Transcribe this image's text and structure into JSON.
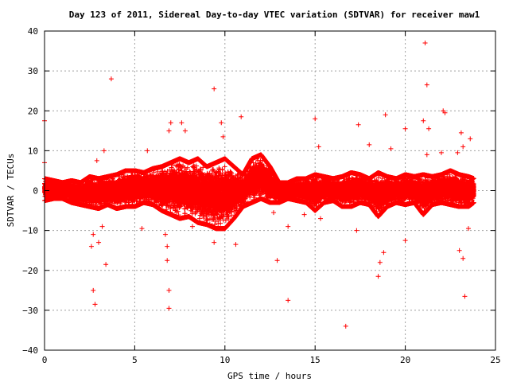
{
  "chart_data": {
    "type": "scatter",
    "title": "Day 123 of 2011, Sidereal Day-to-day VTEC variation (SDTVAR) for receiver maw1",
    "xlabel": "GPS time / hours",
    "ylabel": "SDTVAR / TECUs",
    "xlim": [
      0,
      25
    ],
    "ylim": [
      -40,
      40
    ],
    "xticks": [
      "0",
      "5",
      "10",
      "15",
      "20",
      "25"
    ],
    "yticks": [
      "40",
      "30",
      "20",
      "10",
      "0",
      "−10",
      "−20",
      "−30",
      "−40"
    ],
    "grid": true,
    "marker": "plus",
    "color": "#ff0000",
    "band": [
      [
        0.0,
        -2.5,
        3.0
      ],
      [
        0.5,
        -2.0,
        2.5
      ],
      [
        1.0,
        -2.0,
        2.0
      ],
      [
        1.5,
        -3.0,
        2.5
      ],
      [
        2.0,
        -3.5,
        2.0
      ],
      [
        2.5,
        -4.0,
        3.5
      ],
      [
        3.0,
        -4.5,
        3.0
      ],
      [
        3.5,
        -3.5,
        3.5
      ],
      [
        4.0,
        -4.5,
        4.0
      ],
      [
        4.5,
        -4.0,
        5.0
      ],
      [
        5.0,
        -4.0,
        5.0
      ],
      [
        5.5,
        -3.0,
        4.5
      ],
      [
        6.0,
        -3.5,
        5.5
      ],
      [
        6.5,
        -5.0,
        6.0
      ],
      [
        7.0,
        -6.0,
        7.0
      ],
      [
        7.5,
        -7.0,
        8.0
      ],
      [
        8.0,
        -6.5,
        7.0
      ],
      [
        8.5,
        -8.0,
        8.0
      ],
      [
        9.0,
        -8.5,
        6.0
      ],
      [
        9.5,
        -9.5,
        7.0
      ],
      [
        10.0,
        -9.5,
        8.0
      ],
      [
        10.5,
        -7.0,
        6.0
      ],
      [
        11.0,
        -4.0,
        4.0
      ],
      [
        11.5,
        -3.0,
        8.0
      ],
      [
        12.0,
        -2.0,
        9.0
      ],
      [
        12.5,
        -3.0,
        6.0
      ],
      [
        13.0,
        -3.0,
        2.0
      ],
      [
        13.5,
        -2.0,
        2.0
      ],
      [
        14.0,
        -2.5,
        3.0
      ],
      [
        14.5,
        -3.0,
        3.0
      ],
      [
        15.0,
        -5.0,
        4.0
      ],
      [
        15.5,
        -3.0,
        3.5
      ],
      [
        16.0,
        -2.5,
        3.0
      ],
      [
        16.5,
        -4.0,
        3.5
      ],
      [
        17.0,
        -4.0,
        4.5
      ],
      [
        17.5,
        -3.0,
        4.0
      ],
      [
        18.0,
        -3.5,
        3.0
      ],
      [
        18.5,
        -6.5,
        4.5
      ],
      [
        19.0,
        -4.0,
        3.5
      ],
      [
        19.5,
        -3.0,
        3.0
      ],
      [
        20.0,
        -3.5,
        4.0
      ],
      [
        20.5,
        -3.0,
        3.5
      ],
      [
        21.0,
        -6.0,
        4.0
      ],
      [
        21.5,
        -3.5,
        3.5
      ],
      [
        22.0,
        -3.0,
        4.0
      ],
      [
        22.5,
        -3.5,
        5.0
      ],
      [
        23.0,
        -4.0,
        4.0
      ],
      [
        23.5,
        -4.0,
        3.5
      ],
      [
        23.8,
        -3.0,
        3.0
      ]
    ],
    "outliers": [
      [
        0.0,
        17.5
      ],
      [
        0.0,
        7.0
      ],
      [
        3.7,
        28.0
      ],
      [
        2.7,
        -25.0
      ],
      [
        2.8,
        -28.5
      ],
      [
        3.4,
        -18.5
      ],
      [
        2.6,
        -14.0
      ],
      [
        2.7,
        -11.0
      ],
      [
        3.0,
        -13.0
      ],
      [
        3.2,
        -9.0
      ],
      [
        3.3,
        10.0
      ],
      [
        2.9,
        7.5
      ],
      [
        6.9,
        -25.0
      ],
      [
        6.9,
        -29.5
      ],
      [
        6.8,
        -17.5
      ],
      [
        6.8,
        -14.0
      ],
      [
        6.7,
        -11.0
      ],
      [
        7.0,
        17.0
      ],
      [
        6.9,
        15.0
      ],
      [
        7.6,
        17.0
      ],
      [
        7.8,
        15.0
      ],
      [
        9.4,
        25.5
      ],
      [
        9.8,
        17.0
      ],
      [
        9.9,
        13.5
      ],
      [
        10.9,
        18.5
      ],
      [
        9.4,
        -13.0
      ],
      [
        10.6,
        -13.5
      ],
      [
        12.9,
        -17.5
      ],
      [
        13.5,
        -27.5
      ],
      [
        13.5,
        -9.0
      ],
      [
        15.0,
        18.0
      ],
      [
        15.2,
        11.0
      ],
      [
        15.3,
        -7.0
      ],
      [
        16.7,
        -34.0
      ],
      [
        17.4,
        16.5
      ],
      [
        18.0,
        11.5
      ],
      [
        18.5,
        -21.5
      ],
      [
        18.8,
        -15.5
      ],
      [
        18.9,
        19.0
      ],
      [
        19.2,
        10.5
      ],
      [
        20.0,
        15.5
      ],
      [
        20.0,
        -12.5
      ],
      [
        21.1,
        37.0
      ],
      [
        21.2,
        26.5
      ],
      [
        21.0,
        17.5
      ],
      [
        21.2,
        9.0
      ],
      [
        21.3,
        15.5
      ],
      [
        22.1,
        20.0
      ],
      [
        22.2,
        19.5
      ],
      [
        22.0,
        9.5
      ],
      [
        23.1,
        14.5
      ],
      [
        23.3,
        -26.5
      ],
      [
        23.2,
        -17.0
      ],
      [
        23.0,
        -15.0
      ],
      [
        23.6,
        13.0
      ],
      [
        23.2,
        11.0
      ],
      [
        22.9,
        9.5
      ],
      [
        23.5,
        -9.5
      ],
      [
        18.6,
        -18.0
      ],
      [
        17.3,
        -10.0
      ],
      [
        8.2,
        -9.0
      ],
      [
        5.4,
        -9.5
      ],
      [
        5.7,
        10.0
      ],
      [
        12.7,
        -5.5
      ],
      [
        14.4,
        -6.0
      ]
    ]
  }
}
